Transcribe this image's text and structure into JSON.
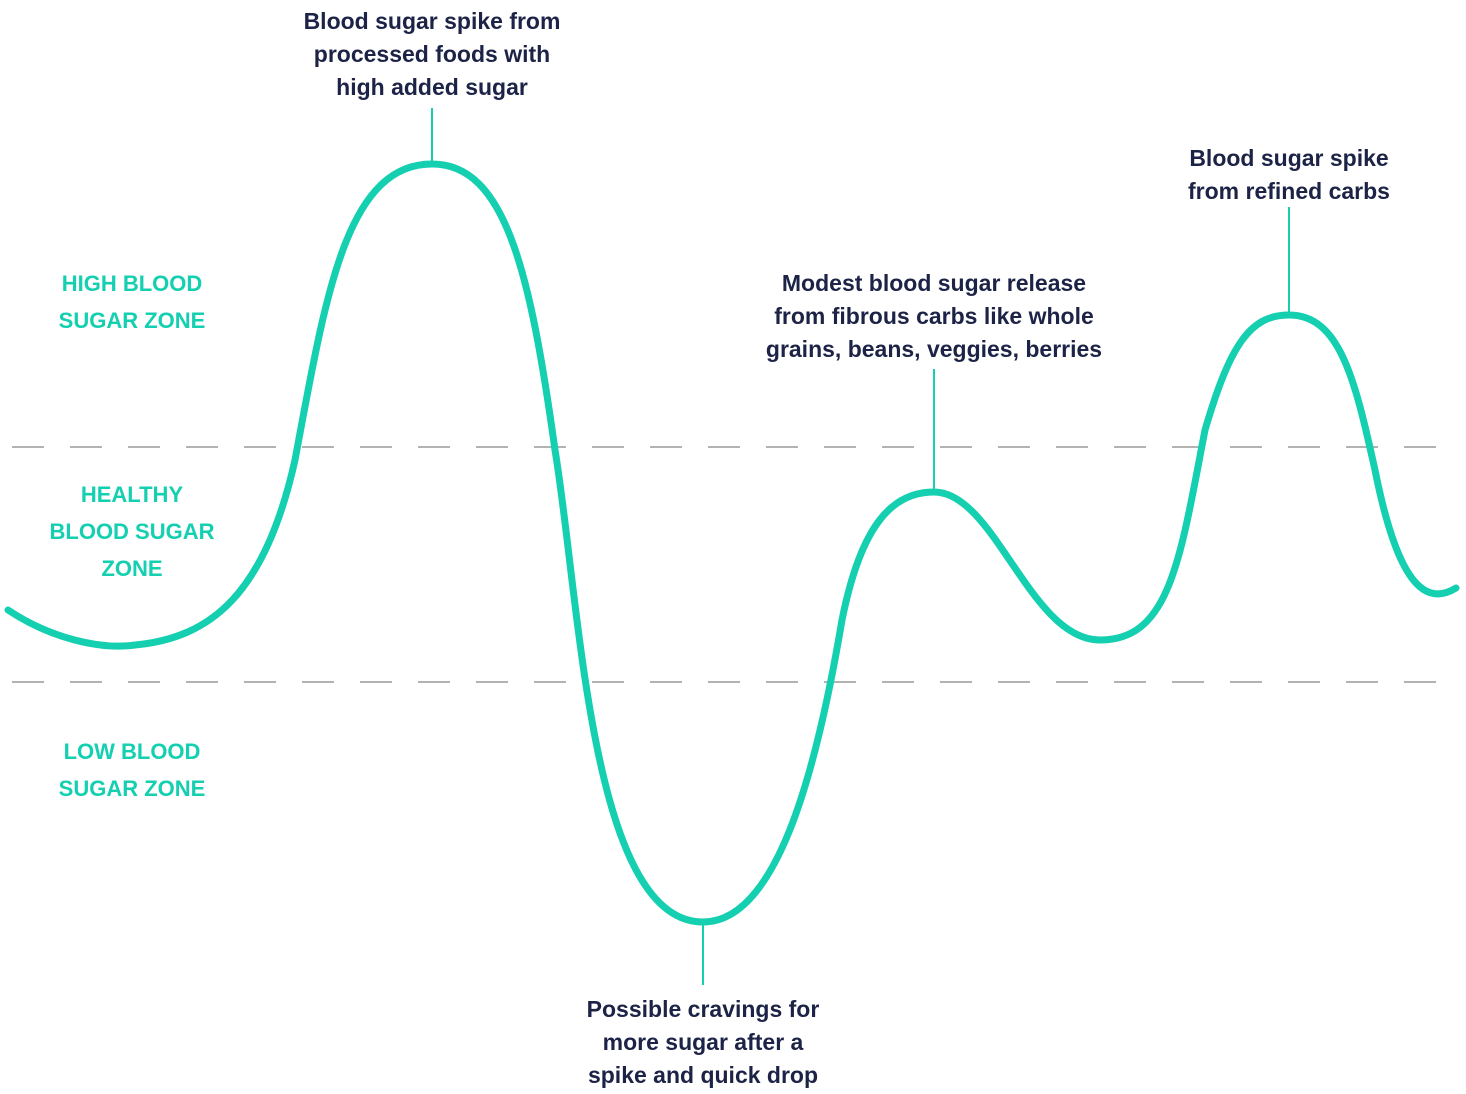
{
  "colors": {
    "curve": "#14CFB0",
    "zone_text": "#14CFB0",
    "callout_text": "#1C2346",
    "callout_line": "#14CFB0",
    "threshold_line": "#B3B3B3",
    "background": "#FFFFFF"
  },
  "zones": {
    "high": "HIGH BLOOD\nSUGAR ZONE",
    "healthy": "HEALTHY\nBLOOD SUGAR\nZONE",
    "low": "LOW BLOOD\nSUGAR ZONE"
  },
  "callouts": {
    "processed_spike": "Blood sugar spike from\nprocessed foods with\nhigh added sugar",
    "cravings": "Possible cravings for\nmore sugar after a\nspike and quick drop",
    "fibrous_release": "Modest blood sugar release\nfrom fibrous carbs like whole\ngrains, beans, veggies, berries",
    "refined_spike": "Blood sugar spike\nfrom refined carbs"
  }
}
